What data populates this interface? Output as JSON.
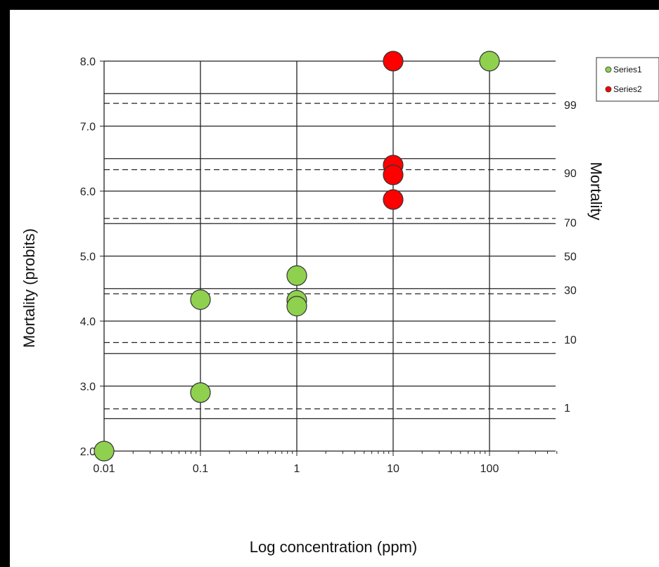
{
  "chart_data": {
    "type": "scatter",
    "x_scale": "log",
    "xlabel": "Log concentration (ppm)",
    "ylabel": "Mortality (probits)",
    "right_axis_label": "Mortality",
    "xlim": [
      0.01,
      500
    ],
    "ylim": [
      2.0,
      8.0
    ],
    "x_ticks": [
      0.01,
      0.1,
      1,
      10,
      100
    ],
    "x_tick_labels": [
      "0.01",
      "0.1",
      "1",
      "10",
      "100"
    ],
    "y_ticks": [
      2.0,
      3.0,
      4.0,
      5.0,
      6.0,
      7.0,
      8.0
    ],
    "y_tick_labels": [
      "2.0",
      "3.0",
      "4.0",
      "5.0",
      "6.0",
      "7.0",
      "8.0"
    ],
    "right_ticks": [
      {
        "label": "99",
        "probit": 7.33
      },
      {
        "label": "90",
        "probit": 6.28
      },
      {
        "label": "70",
        "probit": 5.52
      },
      {
        "label": "50",
        "probit": 5.0
      },
      {
        "label": "30",
        "probit": 4.48
      },
      {
        "label": "10",
        "probit": 3.72
      },
      {
        "label": "1",
        "probit": 2.67
      }
    ],
    "solid_h_lines": [
      2.5,
      3.0,
      3.5,
      4.0,
      4.5,
      5.0,
      5.5,
      6.0,
      6.5,
      7.0,
      7.5,
      8.0
    ],
    "dashed_h_lines": [
      2.65,
      3.67,
      4.42,
      5.58,
      6.33,
      7.35
    ],
    "grid": true,
    "legend_position": "top-right",
    "series": [
      {
        "name": "Series1",
        "color": "#8fd14f",
        "points": [
          {
            "x": 0.01,
            "y": 2.0
          },
          {
            "x": 0.1,
            "y": 2.9
          },
          {
            "x": 0.1,
            "y": 4.33
          },
          {
            "x": 1,
            "y": 4.7
          },
          {
            "x": 1,
            "y": 4.32
          },
          {
            "x": 1,
            "y": 4.23
          },
          {
            "x": 100,
            "y": 8.0
          }
        ]
      },
      {
        "name": "Series2",
        "color": "#ff0000",
        "points": [
          {
            "x": 10,
            "y": 8.0
          },
          {
            "x": 10,
            "y": 6.4
          },
          {
            "x": 10,
            "y": 6.25
          },
          {
            "x": 10,
            "y": 5.87
          }
        ]
      }
    ]
  }
}
